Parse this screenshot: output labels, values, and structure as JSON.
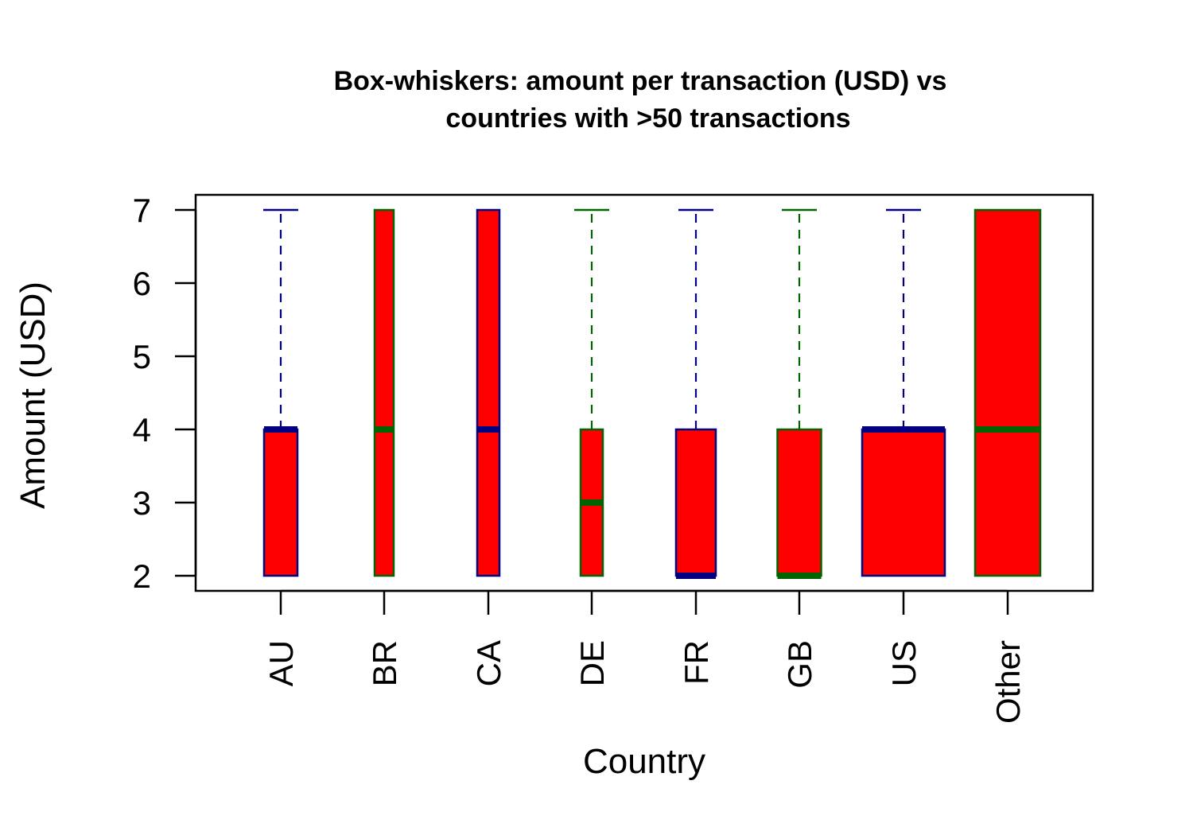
{
  "chart_data": {
    "type": "box",
    "title_lines": [
      "Box-whiskers: amount per transaction (USD) vs",
      "countries with >50 transactions"
    ],
    "xlabel": "Country",
    "ylabel": "Amount (USD)",
    "ylim": [
      1.8,
      7.2
    ],
    "yticks": [
      2,
      3,
      4,
      5,
      6,
      7
    ],
    "grid": false,
    "box_fill": "#ff0000",
    "colors": {
      "navy": "#000080",
      "green": "#006400"
    },
    "boxes": [
      {
        "category": "AU",
        "min": 2,
        "q1": 2,
        "median": 4,
        "q3": 4,
        "max": 7,
        "color": "navy"
      },
      {
        "category": "BR",
        "min": 2,
        "q1": 2,
        "median": 4,
        "q3": 7,
        "max": 7,
        "color": "green"
      },
      {
        "category": "CA",
        "min": 2,
        "q1": 2,
        "median": 4,
        "q3": 7,
        "max": 7,
        "color": "navy"
      },
      {
        "category": "DE",
        "min": 2,
        "q1": 2,
        "median": 3,
        "q3": 4,
        "max": 7,
        "color": "green"
      },
      {
        "category": "FR",
        "min": 2,
        "q1": 2,
        "median": 2,
        "q3": 4,
        "max": 7,
        "color": "navy"
      },
      {
        "category": "GB",
        "min": 2,
        "q1": 2,
        "median": 2,
        "q3": 4,
        "max": 7,
        "color": "green"
      },
      {
        "category": "US",
        "min": 2,
        "q1": 2,
        "median": 4,
        "q3": 4,
        "max": 7,
        "color": "navy"
      },
      {
        "category": "Other",
        "min": 2,
        "q1": 2,
        "median": 4,
        "q3": 7,
        "max": 7,
        "color": "green"
      }
    ]
  }
}
